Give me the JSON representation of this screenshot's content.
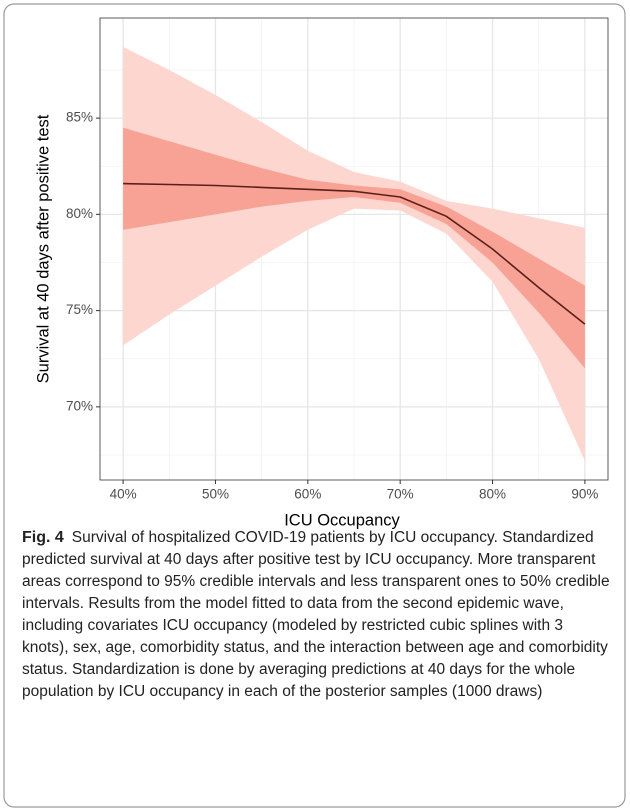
{
  "chart_data": {
    "type": "line",
    "x_label": "ICU Occupancy",
    "y_label": "Survival at 40 days after positive test",
    "x": [
      40,
      45,
      50,
      55,
      60,
      65,
      70,
      75,
      80,
      85,
      90
    ],
    "series": [
      {
        "color": "#5b1f1a",
        "values": [
          81.6,
          81.55,
          81.5,
          81.4,
          81.3,
          81.2,
          80.9,
          79.9,
          78.2,
          76.2,
          74.3
        ]
      }
    ],
    "bands": [
      {
        "color": "#fdd6d0",
        "upper": [
          88.7,
          87.5,
          86.2,
          84.8,
          83.3,
          82.2,
          81.7,
          80.7,
          80.3,
          79.8,
          79.3
        ],
        "lower": [
          73.2,
          74.8,
          76.3,
          77.8,
          79.2,
          80.3,
          80.2,
          79.0,
          76.5,
          72.5,
          67.2
        ]
      },
      {
        "color": "#f7a294",
        "upper": [
          84.5,
          83.8,
          83.1,
          82.4,
          81.8,
          81.5,
          81.3,
          80.4,
          79.1,
          77.7,
          76.3
        ],
        "lower": [
          79.2,
          79.6,
          80.0,
          80.4,
          80.7,
          80.9,
          80.6,
          79.5,
          77.5,
          74.9,
          72.0
        ]
      }
    ],
    "xlim": [
      37.5,
      92.5
    ],
    "ylim": [
      66.2,
      90.2
    ],
    "xticks": [
      {
        "value": 40,
        "label": "40%"
      },
      {
        "value": 50,
        "label": "50%"
      },
      {
        "value": 60,
        "label": "60%"
      },
      {
        "value": 70,
        "label": "70%"
      },
      {
        "value": 80,
        "label": "80%"
      },
      {
        "value": 90,
        "label": "90%"
      }
    ],
    "yticks": [
      {
        "value": 70,
        "label": "70%"
      },
      {
        "value": 75,
        "label": "75%"
      },
      {
        "value": 80,
        "label": "80%"
      },
      {
        "value": 85,
        "label": "85%"
      }
    ],
    "xminor": [
      45,
      55,
      65,
      75,
      85
    ],
    "yminor": [
      67.5,
      72.5,
      77.5,
      82.5,
      87.5
    ],
    "grid": true
  },
  "caption": {
    "label": "Fig. 4",
    "text": "Survival of hospitalized COVID-19 patients by ICU occupancy. Standardized predicted survival at 40 days after positive test by ICU occupancy. More transparent areas correspond to 95% credible intervals and less transparent ones to 50% credible intervals. Results from the model fitted to data from the second epidemic wave, including covariates ICU occupancy (modeled by restricted cubic splines with 3 knots), sex, age, comorbidity status, and the interaction between age and comorbidity status. Standardization is done by averaging predictions at 40 days for the whole population by ICU occupancy in each of the posterior samples (1000 draws)"
  }
}
